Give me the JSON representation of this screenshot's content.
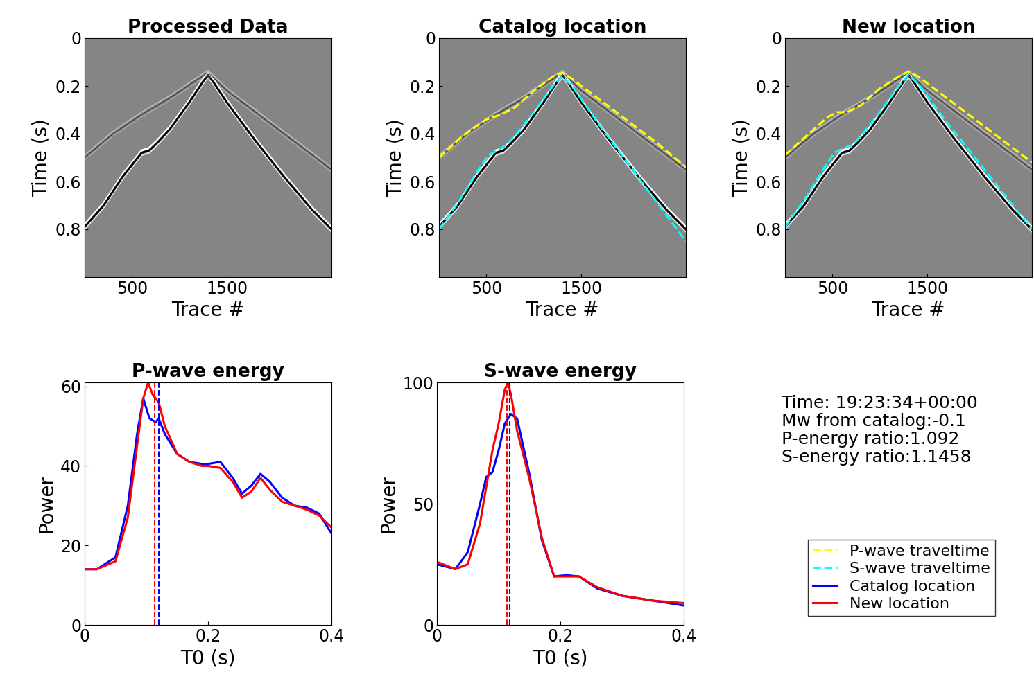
{
  "chart_data": [
    {
      "type": "image",
      "title": "Processed Data",
      "xlabel": "Trace #",
      "ylabel": "Time (s)",
      "xlim": [
        0,
        2600
      ],
      "xticks": [
        500,
        1500
      ],
      "ylim": [
        1,
        0
      ],
      "yticks": [
        0,
        0.2,
        0.4,
        0.6,
        0.8
      ],
      "events": [
        {
          "x": [
            0,
            200,
            400,
            520,
            600,
            680,
            760,
            900,
            1100,
            1250,
            1300,
            1350,
            1500,
            1800,
            2100,
            2400,
            2600
          ],
          "y": [
            0.79,
            0.7,
            0.58,
            0.52,
            0.48,
            0.47,
            0.44,
            0.38,
            0.27,
            0.18,
            0.155,
            0.18,
            0.27,
            0.43,
            0.58,
            0.72,
            0.8
          ]
        },
        {
          "x": [
            0,
            300,
            600,
            900,
            1200,
            1300,
            1500,
            2000,
            2600
          ],
          "y": [
            0.5,
            0.4,
            0.32,
            0.25,
            0.17,
            0.145,
            0.22,
            0.37,
            0.55
          ]
        }
      ],
      "series": []
    },
    {
      "type": "image",
      "title": "Catalog location",
      "xlabel": "Trace #",
      "ylabel": "Time (s)",
      "xlim": [
        0,
        2600
      ],
      "xticks": [
        500,
        1500
      ],
      "ylim": [
        1,
        0
      ],
      "yticks": [
        0,
        0.2,
        0.4,
        0.6,
        0.8
      ],
      "events": [
        {
          "x": [
            0,
            200,
            400,
            520,
            600,
            680,
            760,
            900,
            1100,
            1250,
            1300,
            1350,
            1500,
            1800,
            2100,
            2400,
            2600
          ],
          "y": [
            0.79,
            0.7,
            0.58,
            0.52,
            0.48,
            0.47,
            0.44,
            0.38,
            0.27,
            0.18,
            0.155,
            0.18,
            0.27,
            0.43,
            0.58,
            0.72,
            0.8
          ]
        },
        {
          "x": [
            0,
            300,
            600,
            900,
            1200,
            1300,
            1500,
            2000,
            2600
          ],
          "y": [
            0.5,
            0.4,
            0.32,
            0.25,
            0.17,
            0.145,
            0.22,
            0.37,
            0.55
          ]
        }
      ],
      "series": [
        {
          "name": "P-wave traveltime",
          "color": "#ffff00",
          "line_style": "dashed",
          "x": [
            0,
            250,
            500,
            650,
            800,
            1000,
            1200,
            1300,
            1400,
            1700,
            2000,
            2300,
            2600
          ],
          "values": [
            0.5,
            0.41,
            0.34,
            0.32,
            0.29,
            0.22,
            0.16,
            0.145,
            0.17,
            0.26,
            0.35,
            0.44,
            0.54
          ]
        },
        {
          "name": "S-wave traveltime",
          "color": "#00ffff",
          "line_style": "dashed",
          "x": [
            0,
            200,
            400,
            520,
            620,
            700,
            800,
            1000,
            1200,
            1300,
            1400,
            1700,
            2000,
            2300,
            2600
          ],
          "values": [
            0.8,
            0.69,
            0.56,
            0.49,
            0.47,
            0.45,
            0.41,
            0.31,
            0.2,
            0.16,
            0.2,
            0.37,
            0.53,
            0.69,
            0.85
          ]
        }
      ]
    },
    {
      "type": "image",
      "title": "New location",
      "xlabel": "Trace #",
      "ylabel": "Time (s)",
      "xlim": [
        0,
        2600
      ],
      "xticks": [
        500,
        1500
      ],
      "ylim": [
        1,
        0
      ],
      "yticks": [
        0,
        0.2,
        0.4,
        0.6,
        0.8
      ],
      "events": [
        {
          "x": [
            0,
            200,
            400,
            520,
            600,
            680,
            760,
            900,
            1100,
            1250,
            1300,
            1350,
            1500,
            1800,
            2100,
            2400,
            2600
          ],
          "y": [
            0.79,
            0.7,
            0.58,
            0.52,
            0.48,
            0.47,
            0.44,
            0.38,
            0.27,
            0.18,
            0.155,
            0.18,
            0.27,
            0.43,
            0.58,
            0.72,
            0.8
          ]
        },
        {
          "x": [
            0,
            300,
            600,
            900,
            1200,
            1300,
            1500,
            2000,
            2600
          ],
          "y": [
            0.5,
            0.4,
            0.32,
            0.25,
            0.17,
            0.145,
            0.22,
            0.37,
            0.55
          ]
        }
      ],
      "series": [
        {
          "name": "P-wave traveltime",
          "color": "#ffff00",
          "line_style": "dashed",
          "x": [
            0,
            250,
            450,
            550,
            650,
            800,
            1000,
            1200,
            1300,
            1400,
            1700,
            2000,
            2300,
            2600
          ],
          "values": [
            0.49,
            0.4,
            0.33,
            0.31,
            0.31,
            0.28,
            0.21,
            0.16,
            0.14,
            0.16,
            0.25,
            0.34,
            0.43,
            0.52
          ]
        },
        {
          "name": "S-wave traveltime",
          "color": "#00ffff",
          "line_style": "dashed",
          "x": [
            0,
            200,
            400,
            520,
            620,
            700,
            800,
            1000,
            1200,
            1300,
            1400,
            1700,
            2000,
            2300,
            2600
          ],
          "values": [
            0.79,
            0.68,
            0.55,
            0.48,
            0.46,
            0.45,
            0.41,
            0.31,
            0.2,
            0.155,
            0.19,
            0.35,
            0.5,
            0.65,
            0.8
          ]
        }
      ]
    },
    {
      "type": "line",
      "title": "P-wave energy",
      "xlabel": "T0 (s)",
      "ylabel": "Power",
      "xlim": [
        0,
        0.4
      ],
      "xticks": [
        0,
        0.2,
        0.4
      ],
      "ylim": [
        0,
        61
      ],
      "yticks": [
        0,
        20,
        40,
        60
      ],
      "series": [
        {
          "name": "Catalog location",
          "color": "#0000ff",
          "pick": 0.12,
          "x": [
            0,
            0.02,
            0.05,
            0.07,
            0.085,
            0.095,
            0.105,
            0.115,
            0.12,
            0.13,
            0.15,
            0.17,
            0.19,
            0.2,
            0.22,
            0.24,
            0.255,
            0.27,
            0.285,
            0.3,
            0.32,
            0.34,
            0.36,
            0.38,
            0.4
          ],
          "values": [
            14,
            14,
            17,
            30,
            48,
            57,
            52,
            51,
            52,
            48,
            43,
            41,
            40.5,
            40.5,
            41,
            37,
            33,
            35,
            38,
            36,
            32,
            30,
            29.5,
            28,
            23
          ]
        },
        {
          "name": "New location",
          "color": "#ff0000",
          "pick": 0.113,
          "x": [
            0,
            0.02,
            0.05,
            0.07,
            0.085,
            0.095,
            0.103,
            0.11,
            0.12,
            0.13,
            0.15,
            0.17,
            0.19,
            0.2,
            0.22,
            0.24,
            0.255,
            0.27,
            0.285,
            0.3,
            0.32,
            0.34,
            0.36,
            0.38,
            0.4
          ],
          "values": [
            14,
            14,
            16,
            27,
            45,
            57,
            61,
            58,
            56,
            50,
            43,
            41,
            40,
            40,
            39.5,
            36,
            32,
            33.5,
            37,
            34,
            31,
            30,
            29,
            27.5,
            24.5
          ]
        }
      ]
    },
    {
      "type": "line",
      "title": "S-wave energy",
      "xlabel": "T0 (s)",
      "ylabel": "Power",
      "xlim": [
        0,
        0.4
      ],
      "xticks": [
        0,
        0.2,
        0.4
      ],
      "ylim": [
        0,
        100
      ],
      "yticks": [
        0,
        50,
        100
      ],
      "series": [
        {
          "name": "Catalog location",
          "color": "#0000ff",
          "pick": 0.118,
          "x": [
            0,
            0.03,
            0.05,
            0.07,
            0.08,
            0.09,
            0.1,
            0.11,
            0.12,
            0.13,
            0.15,
            0.17,
            0.19,
            0.21,
            0.23,
            0.26,
            0.3,
            0.35,
            0.4
          ],
          "values": [
            25,
            23,
            30,
            50,
            61,
            63,
            72,
            83,
            87,
            85,
            62,
            35,
            20,
            20.5,
            20,
            15,
            12,
            10,
            8
          ]
        },
        {
          "name": "New location",
          "color": "#ff0000",
          "pick": 0.113,
          "x": [
            0,
            0.03,
            0.05,
            0.07,
            0.09,
            0.1,
            0.11,
            0.115,
            0.12,
            0.13,
            0.15,
            0.17,
            0.19,
            0.21,
            0.23,
            0.26,
            0.3,
            0.35,
            0.4
          ],
          "values": [
            26,
            23,
            25,
            42,
            72,
            83,
            97,
            100,
            95,
            80,
            60,
            36,
            20,
            20,
            20,
            15.5,
            12,
            10,
            9
          ]
        }
      ]
    }
  ],
  "info_panel": {
    "lines": [
      "Time: 19:23:34+00:00",
      "Mw from catalog:-0.1",
      "P-energy ratio:1.092",
      "S-energy ratio:1.1458"
    ],
    "entries": [
      {
        "name": "P-wave traveltime",
        "color": "#ffff00",
        "line_style": "dashed"
      },
      {
        "name": "S-wave traveltime",
        "color": "#00ffff",
        "line_style": "dashed"
      },
      {
        "name": "Catalog location",
        "color": "#0000ff",
        "line_style": "solid"
      },
      {
        "name": "New location",
        "color": "#ff0000",
        "line_style": "solid"
      }
    ]
  }
}
